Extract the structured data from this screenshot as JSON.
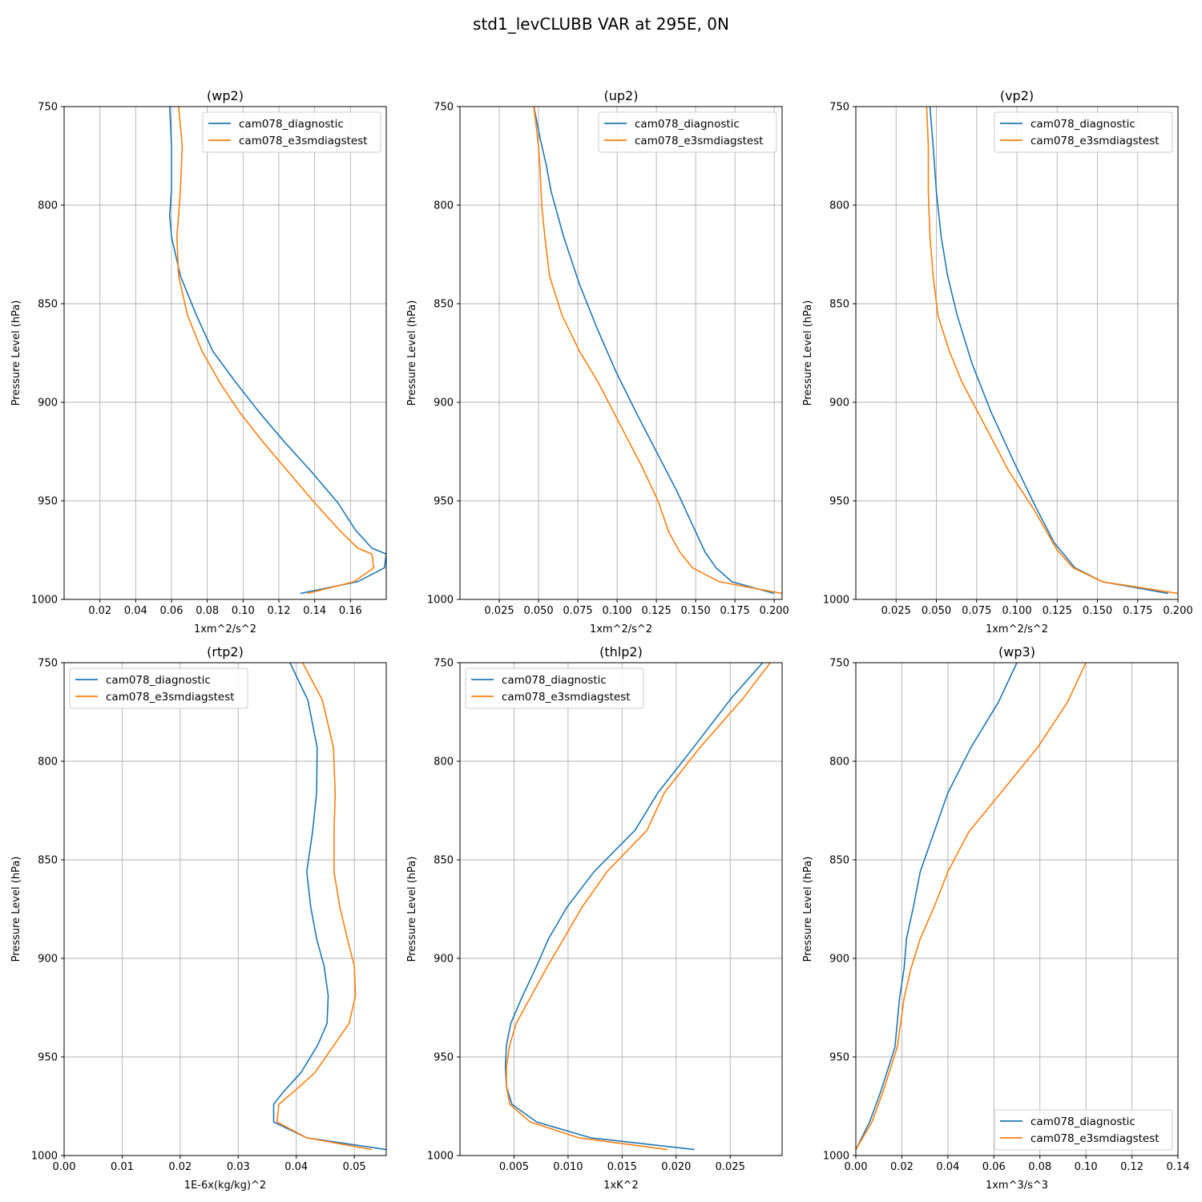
{
  "figure": {
    "title": "std1_levCLUBB VAR at 295E, 0N",
    "series_names": [
      "cam078_diagnostic",
      "cam078_e3smdiagstest"
    ],
    "colors": {
      "diagnostic": "#1f77b4",
      "e3smdiagstest": "#ff7f0e",
      "grid": "#b0b0b0"
    }
  },
  "chart_data": [
    {
      "type": "line",
      "title": "(wp2)",
      "xlabel": "1xm^2/s^2",
      "ylabel": "Pressure Level (hPa)",
      "xlim": [
        0.0,
        0.18
      ],
      "ylim": [
        1000,
        750
      ],
      "xticks": [
        0.02,
        0.04,
        0.06,
        0.08,
        0.1,
        0.12,
        0.14,
        0.16
      ],
      "xtick_labels": [
        "0.02",
        "0.04",
        "0.06",
        "0.08",
        "0.10",
        "0.12",
        "0.14",
        "0.16"
      ],
      "yticks": [
        750,
        800,
        850,
        900,
        950,
        1000
      ],
      "grid": true,
      "legend_loc": "upper-right",
      "series": [
        {
          "name": "cam078_diagnostic",
          "x": [
            0.059,
            0.06,
            0.06,
            0.059,
            0.06,
            0.065,
            0.074,
            0.083,
            0.096,
            0.109,
            0.123,
            0.138,
            0.153,
            0.163,
            0.172,
            0.18,
            0.179,
            0.164,
            0.132
          ],
          "p": [
            750,
            770,
            792,
            805,
            816,
            836,
            856,
            874,
            890,
            905,
            920,
            935,
            951,
            965,
            974,
            977,
            984,
            991,
            997
          ]
        },
        {
          "name": "cam078_e3smdiagstest",
          "x": [
            0.064,
            0.066,
            0.065,
            0.064,
            0.063,
            0.064,
            0.069,
            0.077,
            0.087,
            0.098,
            0.111,
            0.125,
            0.14,
            0.154,
            0.164,
            0.172,
            0.173,
            0.162,
            0.136
          ],
          "p": [
            750,
            770,
            792,
            805,
            816,
            836,
            856,
            874,
            890,
            905,
            920,
            935,
            951,
            965,
            974,
            977,
            984,
            991,
            997
          ]
        }
      ]
    },
    {
      "type": "line",
      "title": "(up2)",
      "xlabel": "1xm^2/s^2",
      "ylabel": "Pressure Level (hPa)",
      "xlim": [
        0.0,
        0.205
      ],
      "ylim": [
        1000,
        750
      ],
      "xticks": [
        0.025,
        0.05,
        0.075,
        0.1,
        0.125,
        0.15,
        0.175,
        0.2
      ],
      "xtick_labels": [
        "0.025",
        "0.050",
        "0.075",
        "0.100",
        "0.125",
        "0.150",
        "0.175",
        "0.200"
      ],
      "yticks": [
        750,
        800,
        850,
        900,
        950,
        1000
      ],
      "grid": true,
      "legend_loc": "upper-right",
      "series": [
        {
          "name": "cam078_diagnostic",
          "x": [
            0.047,
            0.051,
            0.055,
            0.058,
            0.066,
            0.076,
            0.087,
            0.099,
            0.112,
            0.125,
            0.138,
            0.149,
            0.156,
            0.163,
            0.173,
            0.2
          ],
          "p": [
            750,
            766,
            780,
            793,
            816,
            840,
            862,
            884,
            905,
            925,
            945,
            964,
            976,
            984,
            991,
            997
          ]
        },
        {
          "name": "cam078_e3smdiagstest",
          "x": [
            0.047,
            0.05,
            0.051,
            0.052,
            0.054,
            0.057,
            0.065,
            0.076,
            0.088,
            0.101,
            0.116,
            0.126,
            0.133,
            0.14,
            0.148,
            0.165,
            0.205
          ],
          "p": [
            750,
            770,
            782,
            800,
            816,
            836,
            856,
            874,
            890,
            910,
            933,
            950,
            966,
            976,
            984,
            991,
            997
          ]
        }
      ]
    },
    {
      "type": "line",
      "title": "(vp2)",
      "xlabel": "1xm^2/s^2",
      "ylabel": "Pressure Level (hPa)",
      "xlim": [
        0.0,
        0.2
      ],
      "ylim": [
        1000,
        750
      ],
      "xticks": [
        0.025,
        0.05,
        0.075,
        0.1,
        0.125,
        0.15,
        0.175,
        0.2
      ],
      "xtick_labels": [
        "0.025",
        "0.050",
        "0.075",
        "0.100",
        "0.125",
        "0.150",
        "0.175",
        "0.200"
      ],
      "yticks": [
        750,
        800,
        850,
        900,
        950,
        1000
      ],
      "grid": true,
      "legend_loc": "upper-right",
      "series": [
        {
          "name": "cam078_diagnostic",
          "x": [
            0.046,
            0.048,
            0.05,
            0.053,
            0.057,
            0.063,
            0.072,
            0.084,
            0.098,
            0.111,
            0.123,
            0.136,
            0.153,
            0.194
          ],
          "p": [
            750,
            770,
            793,
            816,
            836,
            856,
            880,
            905,
            930,
            952,
            971,
            984,
            991,
            997
          ]
        },
        {
          "name": "cam078_e3smdiagstest",
          "x": [
            0.044,
            0.045,
            0.045,
            0.046,
            0.048,
            0.051,
            0.058,
            0.066,
            0.079,
            0.095,
            0.111,
            0.125,
            0.135,
            0.153,
            0.2
          ],
          "p": [
            750,
            770,
            793,
            816,
            836,
            856,
            874,
            890,
            910,
            935,
            955,
            975,
            984,
            991,
            997
          ]
        }
      ]
    },
    {
      "type": "line",
      "title": "(rtp2)",
      "xlabel": "1E-6x(kg/kg)^2",
      "ylabel": "Pressure Level (hPa)",
      "xlim": [
        0.0,
        0.0555
      ],
      "ylim": [
        1000,
        750
      ],
      "xticks": [
        0.0,
        0.01,
        0.02,
        0.03,
        0.04,
        0.05
      ],
      "xtick_labels": [
        "0.00",
        "0.01",
        "0.02",
        "0.03",
        "0.04",
        "0.05"
      ],
      "yticks": [
        750,
        800,
        850,
        900,
        950,
        1000
      ],
      "grid": true,
      "legend_loc": "upper-left",
      "series": [
        {
          "name": "cam078_diagnostic",
          "x": [
            0.0389,
            0.042,
            0.0436,
            0.0435,
            0.0428,
            0.0418,
            0.0425,
            0.0435,
            0.0448,
            0.0455,
            0.0453,
            0.0437,
            0.0408,
            0.038,
            0.0361,
            0.0361,
            0.0418,
            0.0555
          ],
          "p": [
            750,
            769,
            793,
            816,
            836,
            856,
            874,
            890,
            904,
            919,
            933,
            944,
            958,
            967,
            974,
            983,
            991,
            997
          ]
        },
        {
          "name": "cam078_e3smdiagstest",
          "x": [
            0.0411,
            0.0445,
            0.0464,
            0.0467,
            0.0465,
            0.0465,
            0.0475,
            0.0488,
            0.05,
            0.0502,
            0.0491,
            0.0465,
            0.0432,
            0.0398,
            0.037,
            0.0367,
            0.0418,
            0.053
          ],
          "p": [
            750,
            769,
            793,
            816,
            836,
            856,
            874,
            890,
            904,
            919,
            933,
            944,
            958,
            967,
            974,
            983,
            991,
            997
          ]
        }
      ]
    },
    {
      "type": "line",
      "title": "(thlp2)",
      "xlabel": "1xK^2",
      "ylabel": "Pressure Level (hPa)",
      "xlim": [
        0.0,
        0.0298
      ],
      "ylim": [
        1000,
        750
      ],
      "xticks": [
        0.005,
        0.01,
        0.015,
        0.02,
        0.025
      ],
      "xtick_labels": [
        "0.005",
        "0.010",
        "0.015",
        "0.020",
        "0.025"
      ],
      "yticks": [
        750,
        800,
        850,
        900,
        950,
        1000
      ],
      "grid": true,
      "legend_loc": "upper-left",
      "series": [
        {
          "name": "cam078_diagnostic",
          "x": [
            0.028,
            0.0251,
            0.0216,
            0.0183,
            0.0162,
            0.0124,
            0.0099,
            0.0082,
            0.007,
            0.0058,
            0.0047,
            0.0043,
            0.0042,
            0.0043,
            0.0048,
            0.0071,
            0.0121,
            0.0217
          ],
          "p": [
            750,
            768,
            793,
            816,
            835,
            856,
            874,
            890,
            905,
            919,
            933,
            944,
            955,
            965,
            974,
            983,
            991,
            997
          ]
        },
        {
          "name": "cam078_e3smdiagstest",
          "x": [
            0.0287,
            0.0262,
            0.0222,
            0.0189,
            0.0173,
            0.0136,
            0.0113,
            0.0096,
            0.008,
            0.0066,
            0.0052,
            0.0046,
            0.0043,
            0.0043,
            0.0046,
            0.0065,
            0.011,
            0.0192
          ],
          "p": [
            750,
            768,
            793,
            816,
            835,
            856,
            874,
            890,
            905,
            919,
            933,
            944,
            955,
            965,
            974,
            983,
            991,
            997
          ]
        }
      ]
    },
    {
      "type": "line",
      "title": "(wp3)",
      "xlabel": "1xm^3/s^3",
      "ylabel": "Pressure Level (hPa)",
      "xlim": [
        0.0,
        0.14
      ],
      "ylim": [
        1000,
        750
      ],
      "xticks": [
        0.0,
        0.02,
        0.04,
        0.06,
        0.08,
        0.1,
        0.12,
        0.14
      ],
      "xtick_labels": [
        "0.00",
        "0.02",
        "0.04",
        "0.06",
        "0.08",
        "0.10",
        "0.12",
        "0.14"
      ],
      "yticks": [
        750,
        800,
        850,
        900,
        950,
        1000
      ],
      "grid": true,
      "legend_loc": "lower-right",
      "series": [
        {
          "name": "cam078_diagnostic",
          "x": [
            0.07,
            0.062,
            0.05,
            0.04,
            0.034,
            0.028,
            0.025,
            0.022,
            0.021,
            0.019,
            0.017,
            0.014,
            0.011,
            0.006,
            0.0
          ],
          "p": [
            750,
            770,
            793,
            816,
            836,
            856,
            874,
            890,
            905,
            920,
            945,
            956,
            967,
            983,
            997
          ]
        },
        {
          "name": "cam078_e3smdiagstest",
          "x": [
            0.1,
            0.092,
            0.079,
            0.063,
            0.049,
            0.04,
            0.034,
            0.028,
            0.024,
            0.021,
            0.018,
            0.015,
            0.012,
            0.007,
            0.0
          ],
          "p": [
            750,
            770,
            793,
            816,
            836,
            856,
            874,
            890,
            905,
            920,
            945,
            956,
            967,
            983,
            997
          ]
        }
      ]
    }
  ]
}
